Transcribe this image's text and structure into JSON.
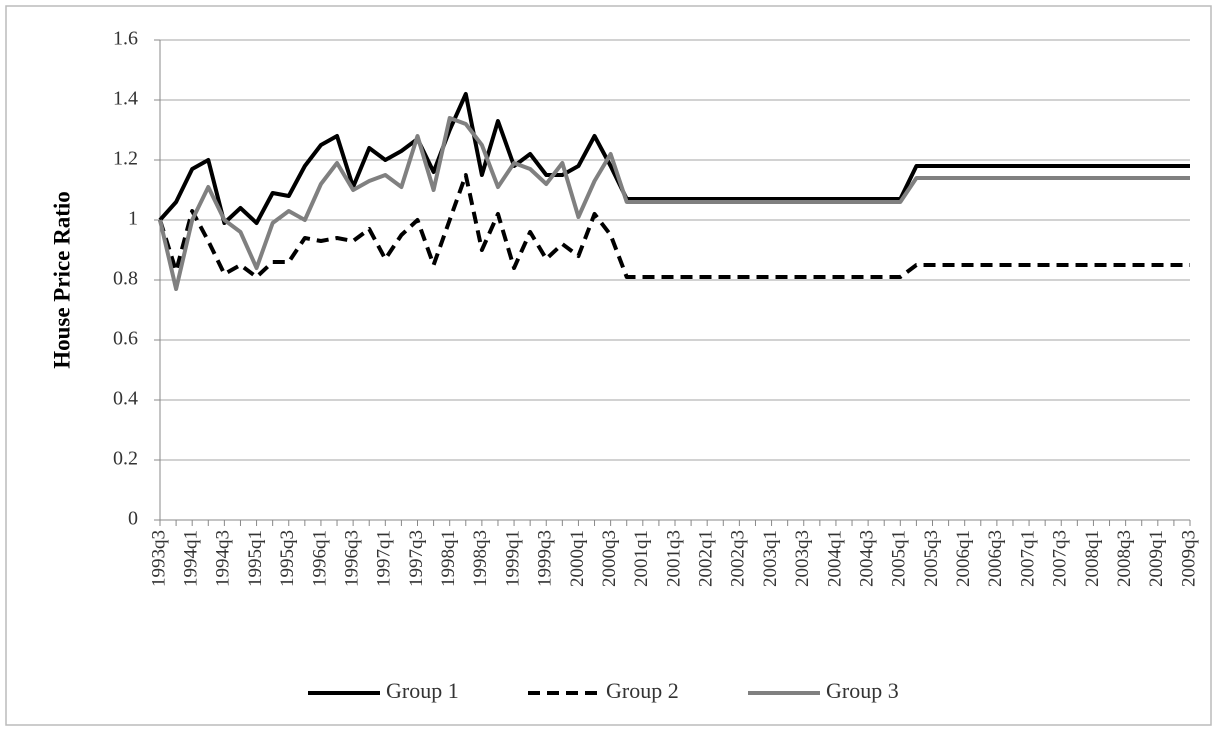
{
  "chart_data": {
    "type": "line",
    "y_label": "House Price Ratio",
    "categories": [
      "1993q3",
      null,
      "1994q1",
      null,
      "1994q3",
      null,
      "1995q1",
      null,
      "1995q3",
      null,
      "1996q1",
      null,
      "1996q3",
      null,
      "1997q1",
      null,
      "1997q3",
      null,
      "1998q1",
      null,
      "1998q3",
      null,
      "1999q1",
      null,
      "1999q3",
      null,
      "2000q1",
      null,
      "2000q3",
      null,
      "2001q1",
      null,
      "2001q3",
      null,
      "2002q1",
      null,
      "2002q3",
      null,
      "2003q1",
      null,
      "2003q3",
      null,
      "2004q1",
      null,
      "2004q3",
      null,
      "2005q1",
      null,
      "2005q3",
      null,
      "2006q1",
      null,
      "2006q3",
      null,
      "2007q1",
      null,
      "2007q3",
      null,
      "2008q1",
      null,
      "2008q3",
      null,
      "2009q1",
      null,
      "2009q3"
    ],
    "series": [
      {
        "name": "Group 1",
        "color": "#000000",
        "line_style": "solid",
        "values": [
          1.0,
          1.06,
          1.17,
          1.2,
          0.99,
          1.04,
          0.99,
          1.09,
          1.08,
          1.18,
          1.25,
          1.28,
          1.11,
          1.24,
          1.2,
          1.23,
          1.27,
          1.16,
          1.3,
          1.42,
          1.15,
          1.33,
          1.18,
          1.22,
          1.15,
          1.15,
          1.18,
          1.28,
          1.18,
          1.07,
          1.07,
          1.07,
          1.07,
          1.07,
          1.07,
          1.07,
          1.07,
          1.07,
          1.07,
          1.07,
          1.07,
          1.07,
          1.07,
          1.07,
          1.07,
          1.07,
          1.07,
          1.18,
          1.18,
          1.18,
          1.18,
          1.18,
          1.18,
          1.18,
          1.18,
          1.18,
          1.18,
          1.18,
          1.18,
          1.18,
          1.18,
          1.18,
          1.18,
          1.18,
          1.18
        ]
      },
      {
        "name": "Group 2",
        "color": "#000000",
        "line_style": "dashed",
        "values": [
          1.0,
          0.83,
          1.03,
          0.93,
          0.82,
          0.85,
          0.81,
          0.86,
          0.86,
          0.94,
          0.93,
          0.94,
          0.93,
          0.97,
          0.87,
          0.95,
          1.0,
          0.85,
          1.0,
          1.15,
          0.9,
          1.02,
          0.84,
          0.96,
          0.87,
          0.92,
          0.88,
          1.02,
          0.95,
          0.81,
          0.81,
          0.81,
          0.81,
          0.81,
          0.81,
          0.81,
          0.81,
          0.81,
          0.81,
          0.81,
          0.81,
          0.81,
          0.81,
          0.81,
          0.81,
          0.81,
          0.81,
          0.85,
          0.85,
          0.85,
          0.85,
          0.85,
          0.85,
          0.85,
          0.85,
          0.85,
          0.85,
          0.85,
          0.85,
          0.85,
          0.85,
          0.85,
          0.85,
          0.85,
          0.85
        ]
      },
      {
        "name": "Group 3",
        "color": "#808080",
        "line_style": "solid",
        "values": [
          1.0,
          0.77,
          1.0,
          1.11,
          1.0,
          0.96,
          0.84,
          0.99,
          1.03,
          1.0,
          1.12,
          1.19,
          1.1,
          1.13,
          1.15,
          1.11,
          1.28,
          1.1,
          1.34,
          1.32,
          1.25,
          1.11,
          1.19,
          1.17,
          1.12,
          1.19,
          1.01,
          1.13,
          1.22,
          1.06,
          1.06,
          1.06,
          1.06,
          1.06,
          1.06,
          1.06,
          1.06,
          1.06,
          1.06,
          1.06,
          1.06,
          1.06,
          1.06,
          1.06,
          1.06,
          1.06,
          1.06,
          1.14,
          1.14,
          1.14,
          1.14,
          1.14,
          1.14,
          1.14,
          1.14,
          1.14,
          1.14,
          1.14,
          1.14,
          1.14,
          1.14,
          1.14,
          1.14,
          1.14,
          1.14
        ]
      }
    ],
    "ylim": [
      0,
      1.6
    ],
    "yticks": [
      0,
      0.2,
      0.4,
      0.6,
      0.8,
      1,
      1.2,
      1.4,
      1.6
    ],
    "grid": true,
    "legend": "bottom"
  }
}
